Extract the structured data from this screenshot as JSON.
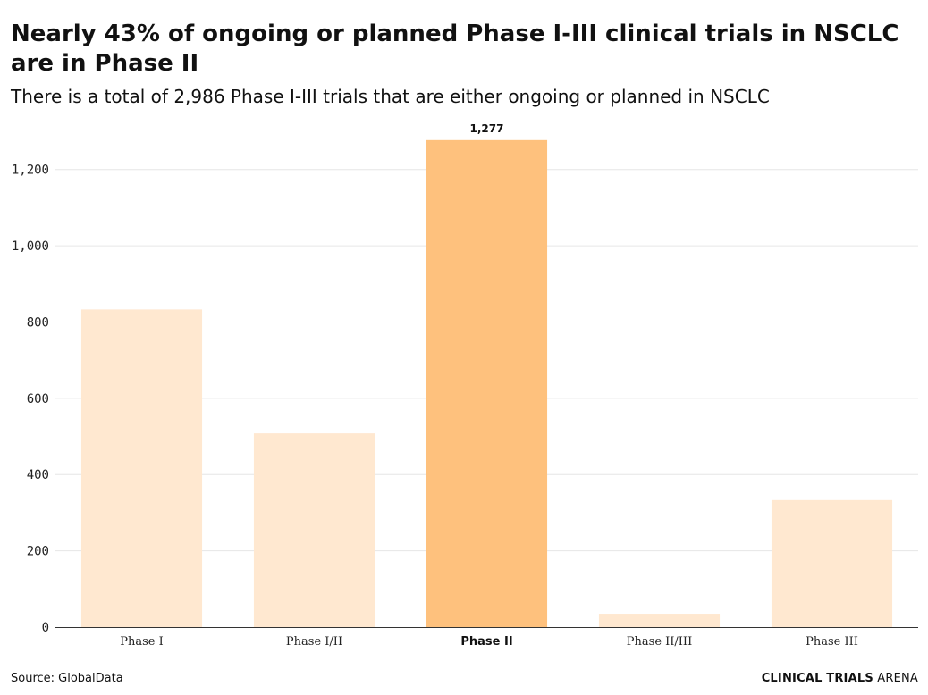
{
  "chart_data": {
    "type": "bar",
    "title": "Nearly 43% of ongoing or planned Phase I-III clinical trials in NSCLC are in Phase II",
    "subtitle": "There is a total of 2,986 Phase I-III trials that are either ongoing or planned in NSCLC",
    "categories": [
      "Phase I",
      "Phase I/II",
      "Phase II",
      "Phase II/III",
      "Phase III"
    ],
    "values": [
      833,
      508,
      1277,
      35,
      333
    ],
    "highlight_index": 2,
    "data_labels": [
      "",
      "",
      "1,277",
      "",
      ""
    ],
    "yticks": [
      0,
      200,
      400,
      600,
      800,
      1000,
      1200
    ],
    "ytick_labels": [
      "0",
      "200",
      "400",
      "600",
      "800",
      "1,000",
      "1,200"
    ],
    "ylim": [
      0,
      1300
    ],
    "xlabel": "",
    "ylabel": "",
    "grid": true,
    "colors": {
      "bar": "#ffe8d0",
      "highlight": "#fec17d",
      "grid": "#e6e6e6",
      "axis": "#333333"
    }
  },
  "footer": {
    "source": "Source: GlobalData",
    "brand_bold": "CLINICAL TRIALS",
    "brand_light": " ARENA"
  }
}
